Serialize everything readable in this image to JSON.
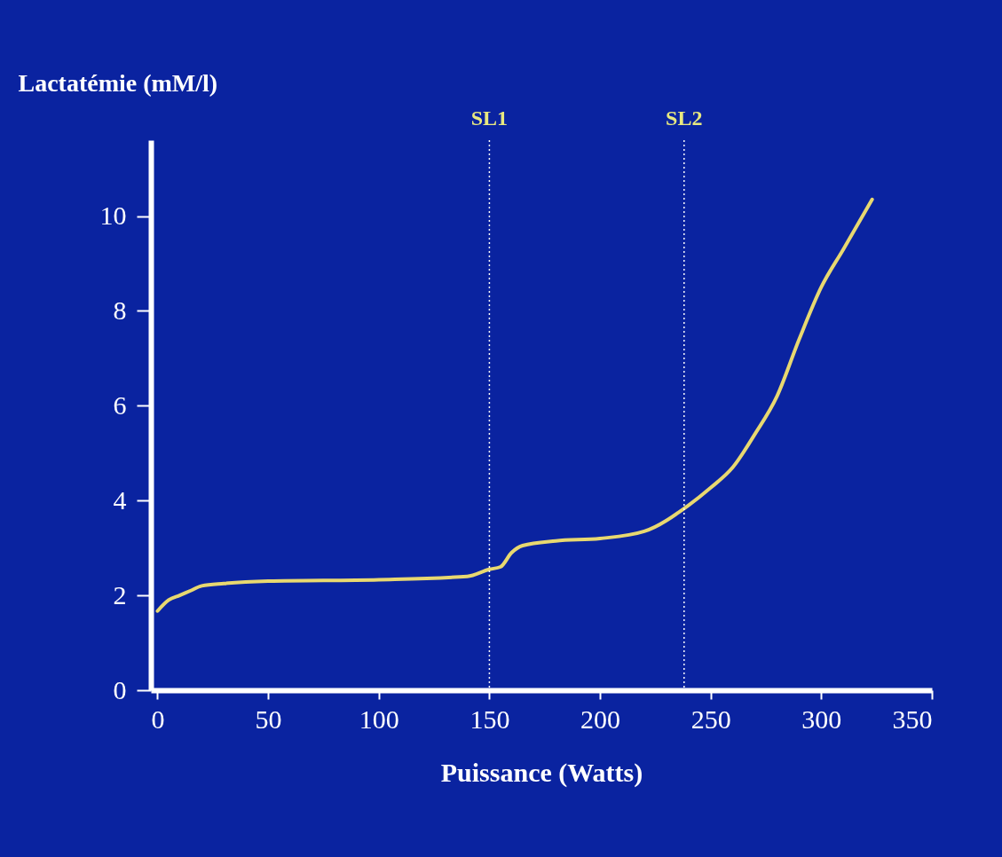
{
  "chart_data": {
    "type": "line",
    "ylabel": "Lactatémie (mM/l)",
    "xlabel": "Puissance (Watts)",
    "x": [
      0,
      5,
      10,
      15,
      20,
      30,
      50,
      100,
      140,
      150,
      155,
      160,
      165,
      180,
      200,
      220,
      240,
      250,
      260,
      270,
      280,
      290,
      300,
      310,
      323
    ],
    "series": [
      {
        "color": "#e8d870",
        "values": [
          1.67,
          1.9,
          2.0,
          2.1,
          2.2,
          2.25,
          2.3,
          2.33,
          2.4,
          2.55,
          2.6,
          2.9,
          3.05,
          3.15,
          3.2,
          3.35,
          3.9,
          4.27,
          4.7,
          5.4,
          6.2,
          7.4,
          8.5,
          9.3,
          10.35
        ]
      }
    ],
    "xlim": [
      -3,
      350
    ],
    "ylim": [
      0,
      11.6
    ],
    "xticks": [
      0,
      50,
      100,
      150,
      200,
      250,
      300,
      350
    ],
    "yticks": [
      0,
      2,
      4,
      6,
      8,
      10
    ],
    "ref_lines": [
      {
        "axis": "x",
        "value": 150,
        "label": "SL1",
        "color": "#ffffff",
        "line_style": "dotted"
      },
      {
        "axis": "x",
        "value": 238,
        "label": "SL2",
        "color": "#ffffff",
        "line_style": "dotted"
      }
    ],
    "grid": false,
    "legend": false,
    "marker": "none"
  }
}
